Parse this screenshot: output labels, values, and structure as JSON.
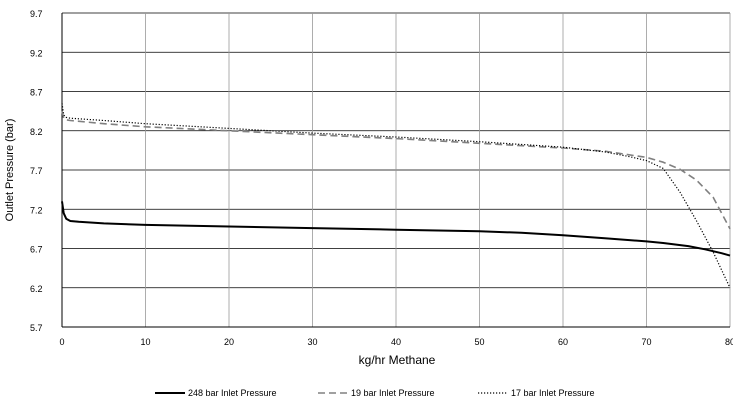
{
  "chart_data": {
    "type": "line",
    "title": "",
    "xlabel": "kg/hr Methane",
    "ylabel": "Outlet Pressure (bar)",
    "xlim": [
      0,
      80
    ],
    "ylim": [
      5.7,
      9.7
    ],
    "x_ticks": [
      "0",
      "10",
      "20",
      "30",
      "40",
      "50",
      "60",
      "70",
      "80"
    ],
    "y_ticks": [
      "5.7",
      "6.2",
      "6.7",
      "7.2",
      "7.7",
      "8.2",
      "8.7",
      "9.2",
      "9.7"
    ],
    "grid": true,
    "legend_position": "bottom",
    "series": [
      {
        "name": "248 bar Inlet Pressure",
        "style": "solid",
        "color": "#000000",
        "points": [
          [
            0,
            7.3
          ],
          [
            0.2,
            7.15
          ],
          [
            0.5,
            7.08
          ],
          [
            1,
            7.05
          ],
          [
            2,
            7.04
          ],
          [
            5,
            7.02
          ],
          [
            10,
            7.0
          ],
          [
            20,
            6.98
          ],
          [
            30,
            6.96
          ],
          [
            40,
            6.94
          ],
          [
            50,
            6.92
          ],
          [
            55,
            6.9
          ],
          [
            60,
            6.87
          ],
          [
            65,
            6.83
          ],
          [
            70,
            6.79
          ],
          [
            72,
            6.77
          ],
          [
            75,
            6.73
          ],
          [
            77,
            6.69
          ],
          [
            79,
            6.64
          ],
          [
            80,
            6.61
          ]
        ]
      },
      {
        "name": "19 bar Inlet Pressure",
        "style": "dashed",
        "color": "#808080",
        "points": [
          [
            0,
            8.45
          ],
          [
            0.2,
            8.36
          ],
          [
            0.5,
            8.34
          ],
          [
            1,
            8.33
          ],
          [
            5,
            8.29
          ],
          [
            10,
            8.25
          ],
          [
            20,
            8.2
          ],
          [
            30,
            8.15
          ],
          [
            40,
            8.1
          ],
          [
            50,
            8.04
          ],
          [
            60,
            7.98
          ],
          [
            65,
            7.94
          ],
          [
            70,
            7.86
          ],
          [
            72,
            7.8
          ],
          [
            74,
            7.71
          ],
          [
            76,
            7.57
          ],
          [
            78,
            7.35
          ],
          [
            80,
            6.95
          ]
        ]
      },
      {
        "name": "17 bar Inlet Pressure",
        "style": "dotted",
        "color": "#000000",
        "points": [
          [
            0,
            8.55
          ],
          [
            0.2,
            8.4
          ],
          [
            0.5,
            8.37
          ],
          [
            1,
            8.36
          ],
          [
            5,
            8.33
          ],
          [
            10,
            8.29
          ],
          [
            20,
            8.23
          ],
          [
            30,
            8.17
          ],
          [
            40,
            8.12
          ],
          [
            50,
            8.06
          ],
          [
            60,
            7.99
          ],
          [
            65,
            7.93
          ],
          [
            68,
            7.87
          ],
          [
            70,
            7.82
          ],
          [
            72,
            7.72
          ],
          [
            74,
            7.42
          ],
          [
            76,
            7.05
          ],
          [
            78,
            6.65
          ],
          [
            80,
            6.2
          ]
        ]
      }
    ]
  }
}
